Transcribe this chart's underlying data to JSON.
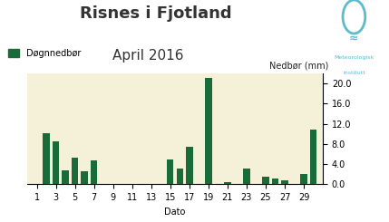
{
  "title": "Risnes i Fjotland",
  "subtitle": "April 2016",
  "legend_label": "Døgnnedbør",
  "xlabel": "Dato",
  "ylabel_right": "Nedbør (mm)",
  "bar_color": "#1a6b3a",
  "background_color": "#f5f0d8",
  "outer_bg": "#ffffff",
  "ylim": [
    0,
    22
  ],
  "yticks": [
    0.0,
    4.0,
    8.0,
    12.0,
    16.0,
    20.0
  ],
  "days": [
    1,
    2,
    3,
    4,
    5,
    6,
    7,
    8,
    9,
    10,
    11,
    12,
    13,
    14,
    15,
    16,
    17,
    18,
    19,
    20,
    21,
    22,
    23,
    24,
    25,
    26,
    27,
    28,
    29,
    30
  ],
  "values": [
    0.0,
    10.2,
    8.5,
    2.8,
    5.2,
    2.5,
    4.8,
    0.0,
    0.0,
    0.0,
    0.0,
    0.0,
    0.0,
    0.0,
    4.9,
    3.2,
    7.5,
    0.0,
    21.0,
    0.0,
    0.5,
    0.0,
    3.2,
    0.0,
    1.5,
    1.2,
    0.8,
    0.0,
    2.0,
    10.8
  ],
  "xtick_labels": [
    "1",
    "3",
    "5",
    "7",
    "9",
    "11",
    "13",
    "15",
    "17",
    "19",
    "21",
    "23",
    "25",
    "27",
    "29"
  ],
  "xtick_positions": [
    1,
    3,
    5,
    7,
    9,
    11,
    13,
    15,
    17,
    19,
    21,
    23,
    25,
    27,
    29
  ],
  "title_fontsize": 13,
  "subtitle_fontsize": 11,
  "axis_fontsize": 7,
  "label_fontsize": 7,
  "logo_color": "#5bbccc"
}
